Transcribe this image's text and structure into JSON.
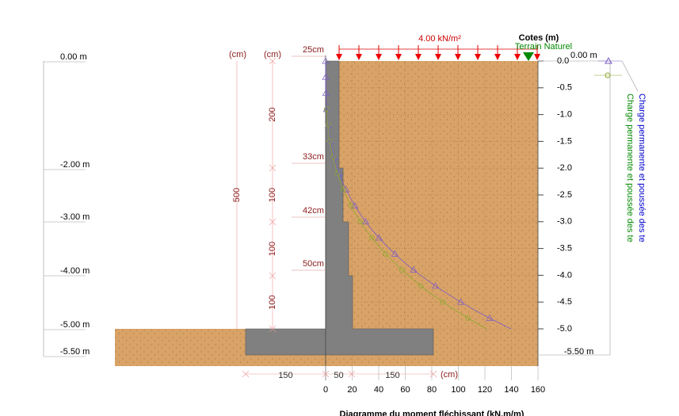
{
  "load": {
    "label": "4.00 kN/m²"
  },
  "ground": {
    "title": "Cotes (m)",
    "label": "Terrain Naturel"
  },
  "left_elevations": [
    "0.00 m",
    "-2.00 m",
    "-3.00 m",
    "-4.00 m",
    "-5.00 m",
    "-5.50 m"
  ],
  "right_axis": {
    "labels": [
      "0.0",
      "-0.5",
      "-1.0",
      "-1.5",
      "-2.0",
      "-2.5",
      "-3.0",
      "-3.5",
      "-4.0",
      "-4.5",
      "-5.0"
    ],
    "top": "0.00 m",
    "bottom": "-5.50 m"
  },
  "x_axis": {
    "labels": [
      "0",
      "20",
      "40",
      "60",
      "80",
      "100",
      "120",
      "140",
      "160"
    ],
    "unit": "(cm)"
  },
  "wall_widths": [
    "25cm",
    "33cm",
    "42cm",
    "50cm"
  ],
  "vertical_dims": {
    "unit_total": "(cm)",
    "total": "500",
    "unit_parts": "(cm)",
    "parts": [
      "200",
      "100",
      "100",
      "100"
    ]
  },
  "base_dims": [
    "150",
    "50",
    "150"
  ],
  "legend": [
    "Charge permanente et poussée des te",
    "Charge permanente et poussée des te"
  ],
  "footer": "Diagramme du moment fléchissant (kN.m/m)"
}
